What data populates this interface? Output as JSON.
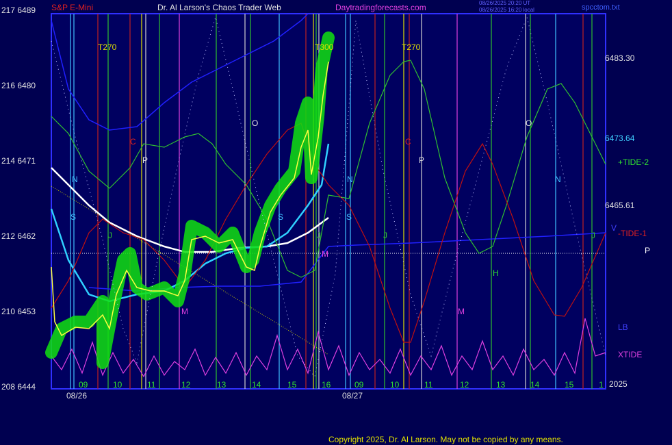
{
  "header": {
    "symbol": "S&P E-Mini",
    "title": "Dr. Al Larson's Chaos Trader Web",
    "site": "Daytradingforecasts.com",
    "stamp": [
      "08/26/2025 20:20 UT",
      "08/26/2025 16:20 local"
    ],
    "file": "spcctom.txt"
  },
  "left_axis": [
    "217  6489",
    "216  6480",
    "214  6471",
    "212  6462",
    "210  6453",
    "208  6444"
  ],
  "right_labels": [
    "6483.30",
    "6473.64",
    "+TIDE-2",
    "6465.61",
    "V",
    "-TIDE-1",
    "P",
    "LB",
    "XTIDE",
    "2025"
  ],
  "hours": [
    "09",
    "10",
    "11",
    "12",
    "13",
    "14",
    "15",
    "16",
    "09",
    "10",
    "11",
    "12",
    "13",
    "14",
    "15",
    "1"
  ],
  "dates": [
    "08/26",
    "08/27"
  ],
  "markers": [
    "T270",
    "T300",
    "T270",
    "C",
    "C",
    "P",
    "P",
    "O",
    "O",
    "N",
    "N",
    "N",
    "S",
    "S",
    "S",
    "J",
    "J",
    "J",
    "J",
    "M",
    "M",
    "M",
    "H"
  ],
  "copyright": "Copyright 2025, Dr. Al Larson. May not be copied by any means."
}
